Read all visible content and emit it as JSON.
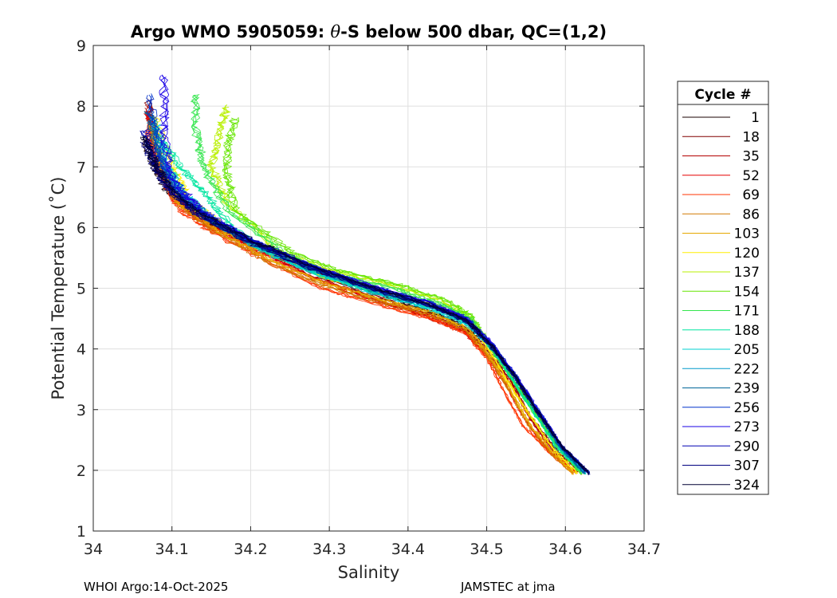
{
  "footer": {
    "left": "WHOI Argo:14-Oct-2025",
    "right": "JAMSTEC at jma"
  },
  "chart_data": {
    "type": "line",
    "title_parts": [
      "Argo WMO 5905059: ",
      "θ",
      "-S below 500 dbar,  QC=(1,2)"
    ],
    "xlabel": "Salinity",
    "ylabel": "Potential Temperature (˚C)",
    "xlim": [
      34,
      34.7
    ],
    "ylim": [
      1,
      9
    ],
    "xticks": [
      34,
      34.1,
      34.2,
      34.3,
      34.4,
      34.5,
      34.6,
      34.7
    ],
    "xtick_labels": [
      "34",
      "34.1",
      "34.2",
      "34.3",
      "34.4",
      "34.5",
      "34.6",
      "34.7"
    ],
    "yticks": [
      1,
      2,
      3,
      4,
      5,
      6,
      7,
      8,
      9
    ],
    "ytick_labels": [
      "1",
      "2",
      "3",
      "4",
      "5",
      "6",
      "7",
      "8",
      "9"
    ],
    "grid": true,
    "legend": {
      "title": "Cycle #",
      "placement": "outside-right",
      "entries": [
        {
          "label": "1",
          "color": "#1a0000"
        },
        {
          "label": "18",
          "color": "#800000"
        },
        {
          "label": "35",
          "color": "#b30000"
        },
        {
          "label": "52",
          "color": "#e60000"
        },
        {
          "label": "69",
          "color": "#ff3300"
        },
        {
          "label": "86",
          "color": "#d27800"
        },
        {
          "label": "103",
          "color": "#e6a800"
        },
        {
          "label": "120",
          "color": "#ffee00"
        },
        {
          "label": "137",
          "color": "#b8f000"
        },
        {
          "label": "154",
          "color": "#66e600"
        },
        {
          "label": "171",
          "color": "#33e64d"
        },
        {
          "label": "188",
          "color": "#00e6a0"
        },
        {
          "label": "205",
          "color": "#00d2d2"
        },
        {
          "label": "222",
          "color": "#0099cc"
        },
        {
          "label": "239",
          "color": "#006699"
        },
        {
          "label": "256",
          "color": "#0033cc"
        },
        {
          "label": "273",
          "color": "#1a00e6"
        },
        {
          "label": "290",
          "color": "#0000b3"
        },
        {
          "label": "307",
          "color": "#000080"
        },
        {
          "label": "324",
          "color": "#000033"
        }
      ]
    },
    "series": [
      {
        "cycle": "1",
        "color": "#1a0000",
        "x": [
          34.065,
          34.078,
          34.095,
          34.13,
          34.18,
          34.25,
          34.33,
          34.41,
          34.46,
          34.5,
          34.53,
          34.56,
          34.59,
          34.625
        ],
        "y": [
          7.5,
          7.0,
          6.6,
          6.2,
          5.85,
          5.45,
          5.05,
          4.7,
          4.45,
          4.1,
          3.55,
          3.0,
          2.4,
          1.95
        ]
      },
      {
        "cycle": "18",
        "color": "#800000",
        "x": [
          34.07,
          34.08,
          34.1,
          34.14,
          34.19,
          34.26,
          34.34,
          34.42,
          34.47,
          34.5,
          34.53,
          34.555,
          34.59,
          34.62
        ],
        "y": [
          8.1,
          7.1,
          6.6,
          6.15,
          5.8,
          5.35,
          4.95,
          4.6,
          4.35,
          4.0,
          3.5,
          2.9,
          2.3,
          1.95
        ]
      },
      {
        "cycle": "35",
        "color": "#b30000",
        "x": [
          34.07,
          34.085,
          34.105,
          34.145,
          34.2,
          34.27,
          34.35,
          34.42,
          34.47,
          34.5,
          34.53,
          34.555,
          34.585,
          34.615
        ],
        "y": [
          8.0,
          7.0,
          6.5,
          6.05,
          5.7,
          5.25,
          4.85,
          4.55,
          4.3,
          3.95,
          3.45,
          2.85,
          2.3,
          1.95
        ]
      },
      {
        "cycle": "52",
        "color": "#e60000",
        "x": [
          34.07,
          34.085,
          34.105,
          34.15,
          34.21,
          34.28,
          34.36,
          34.43,
          34.47,
          34.5,
          34.525,
          34.55,
          34.58,
          34.615
        ],
        "y": [
          7.9,
          6.95,
          6.45,
          6.0,
          5.6,
          5.15,
          4.8,
          4.55,
          4.3,
          3.9,
          3.4,
          2.8,
          2.3,
          1.95
        ]
      },
      {
        "cycle": "69",
        "color": "#ff3300",
        "x": [
          34.07,
          34.09,
          34.11,
          34.155,
          34.22,
          34.29,
          34.37,
          34.43,
          34.475,
          34.5,
          34.52,
          34.545,
          34.58,
          34.61
        ],
        "y": [
          7.6,
          6.8,
          6.3,
          5.9,
          5.45,
          5.0,
          4.7,
          4.5,
          4.25,
          3.85,
          3.35,
          2.75,
          2.3,
          1.95
        ]
      },
      {
        "cycle": "86",
        "color": "#d27800",
        "x": [
          34.075,
          34.09,
          34.11,
          34.16,
          34.22,
          34.29,
          34.37,
          34.43,
          34.475,
          34.5,
          34.525,
          34.55,
          34.58,
          34.61
        ],
        "y": [
          7.6,
          6.85,
          6.35,
          5.9,
          5.45,
          5.05,
          4.75,
          4.55,
          4.3,
          3.9,
          3.4,
          2.8,
          2.3,
          1.95
        ]
      },
      {
        "cycle": "103",
        "color": "#e6a800",
        "x": [
          34.075,
          34.09,
          34.11,
          34.16,
          34.22,
          34.29,
          34.37,
          34.43,
          34.475,
          34.5,
          34.525,
          34.55,
          34.58,
          34.61
        ],
        "y": [
          7.7,
          6.9,
          6.4,
          5.95,
          5.5,
          5.1,
          4.8,
          4.6,
          4.35,
          3.95,
          3.45,
          2.85,
          2.35,
          1.95
        ]
      },
      {
        "cycle": "120",
        "color": "#ffee00",
        "x": [
          34.08,
          34.1,
          34.12,
          34.17,
          34.23,
          34.3,
          34.38,
          34.44,
          34.48,
          34.5,
          34.525,
          34.555,
          34.585,
          34.615
        ],
        "y": [
          7.8,
          7.0,
          6.5,
          6.0,
          5.55,
          5.15,
          4.9,
          4.7,
          4.45,
          4.05,
          3.5,
          2.9,
          2.35,
          1.95
        ]
      },
      {
        "cycle": "137",
        "color": "#b8f000",
        "x": [
          34.17,
          34.16,
          34.15,
          34.17,
          34.23,
          34.3,
          34.38,
          34.44,
          34.48,
          34.5,
          34.53,
          34.56,
          34.59,
          34.62
        ],
        "y": [
          8.0,
          7.5,
          7.0,
          6.4,
          5.65,
          5.3,
          5.05,
          4.8,
          4.5,
          4.1,
          3.55,
          2.95,
          2.4,
          1.95
        ]
      },
      {
        "cycle": "154",
        "color": "#66e600",
        "x": [
          34.18,
          34.17,
          34.17,
          34.18,
          34.25,
          34.31,
          34.39,
          34.45,
          34.48,
          34.5,
          34.53,
          34.56,
          34.59,
          34.62
        ],
        "y": [
          7.8,
          7.3,
          6.9,
          6.3,
          5.6,
          5.3,
          5.05,
          4.8,
          4.55,
          4.15,
          3.55,
          2.95,
          2.4,
          1.95
        ]
      },
      {
        "cycle": "171",
        "color": "#33e64d",
        "x": [
          34.13,
          34.13,
          34.14,
          34.17,
          34.24,
          34.3,
          34.38,
          34.44,
          34.48,
          34.5,
          34.53,
          34.56,
          34.59,
          34.62
        ],
        "y": [
          8.2,
          7.6,
          7.0,
          6.3,
          5.6,
          5.25,
          5.0,
          4.75,
          4.5,
          4.1,
          3.55,
          2.95,
          2.4,
          1.95
        ]
      },
      {
        "cycle": "188",
        "color": "#00e6a0",
        "x": [
          34.09,
          34.11,
          34.14,
          34.17,
          34.22,
          34.29,
          34.37,
          34.44,
          34.48,
          34.505,
          34.53,
          34.56,
          34.59,
          34.625
        ],
        "y": [
          7.4,
          7.0,
          6.6,
          6.1,
          5.6,
          5.2,
          4.9,
          4.65,
          4.4,
          4.05,
          3.55,
          2.95,
          2.35,
          1.95
        ]
      },
      {
        "cycle": "205",
        "color": "#00d2d2",
        "x": [
          34.08,
          34.095,
          34.115,
          34.155,
          34.21,
          34.28,
          34.36,
          34.43,
          34.475,
          34.505,
          34.535,
          34.565,
          34.595,
          34.625
        ],
        "y": [
          7.7,
          7.0,
          6.55,
          6.1,
          5.65,
          5.25,
          4.9,
          4.65,
          4.4,
          4.05,
          3.55,
          2.95,
          2.35,
          1.95
        ]
      },
      {
        "cycle": "222",
        "color": "#0099cc",
        "x": [
          34.075,
          34.09,
          34.11,
          34.15,
          34.21,
          34.28,
          34.36,
          34.43,
          34.475,
          34.505,
          34.535,
          34.565,
          34.595,
          34.625
        ],
        "y": [
          7.8,
          7.05,
          6.55,
          6.1,
          5.7,
          5.3,
          4.95,
          4.7,
          4.45,
          4.05,
          3.55,
          2.95,
          2.35,
          1.95
        ]
      },
      {
        "cycle": "239",
        "color": "#006699",
        "x": [
          34.07,
          34.085,
          34.105,
          34.145,
          34.2,
          34.27,
          34.35,
          34.43,
          34.475,
          34.505,
          34.535,
          34.565,
          34.595,
          34.625
        ],
        "y": [
          7.9,
          7.1,
          6.6,
          6.15,
          5.75,
          5.35,
          5.0,
          4.72,
          4.45,
          4.05,
          3.55,
          2.95,
          2.35,
          1.95
        ]
      },
      {
        "cycle": "256",
        "color": "#0033cc",
        "x": [
          34.07,
          34.085,
          34.105,
          34.145,
          34.2,
          34.27,
          34.35,
          34.43,
          34.475,
          34.505,
          34.535,
          34.565,
          34.595,
          34.63
        ],
        "y": [
          8.2,
          7.2,
          6.65,
          6.2,
          5.8,
          5.4,
          5.05,
          4.75,
          4.5,
          4.1,
          3.6,
          3.0,
          2.4,
          1.95
        ]
      },
      {
        "cycle": "273",
        "color": "#1a00e6",
        "x": [
          34.09,
          34.09,
          34.1,
          34.14,
          34.2,
          34.27,
          34.35,
          34.43,
          34.475,
          34.505,
          34.535,
          34.565,
          34.595,
          34.63
        ],
        "y": [
          8.5,
          7.5,
          6.8,
          6.25,
          5.8,
          5.4,
          5.05,
          4.75,
          4.5,
          4.1,
          3.6,
          3.0,
          2.4,
          1.95
        ]
      },
      {
        "cycle": "290",
        "color": "#0000b3",
        "x": [
          34.065,
          34.08,
          34.1,
          34.14,
          34.2,
          34.27,
          34.35,
          34.43,
          34.475,
          34.505,
          34.535,
          34.565,
          34.595,
          34.63
        ],
        "y": [
          7.6,
          7.05,
          6.6,
          6.2,
          5.8,
          5.4,
          5.02,
          4.72,
          4.48,
          4.08,
          3.58,
          2.98,
          2.4,
          1.95
        ]
      },
      {
        "cycle": "307",
        "color": "#000080",
        "x": [
          34.065,
          34.08,
          34.1,
          34.14,
          34.2,
          34.27,
          34.35,
          34.43,
          34.475,
          34.505,
          34.535,
          34.565,
          34.595,
          34.63
        ],
        "y": [
          7.4,
          6.95,
          6.55,
          6.15,
          5.75,
          5.35,
          5.0,
          4.7,
          4.45,
          4.05,
          3.55,
          2.95,
          2.4,
          1.95
        ]
      },
      {
        "cycle": "324",
        "color": "#000033",
        "x": [
          34.065,
          34.08,
          34.1,
          34.14,
          34.2,
          34.27,
          34.35,
          34.43,
          34.475,
          34.505,
          34.535,
          34.565,
          34.595,
          34.63
        ],
        "y": [
          7.5,
          7.0,
          6.6,
          6.2,
          5.8,
          5.4,
          5.03,
          4.72,
          4.47,
          4.07,
          3.57,
          2.97,
          2.4,
          1.95
        ]
      }
    ]
  }
}
